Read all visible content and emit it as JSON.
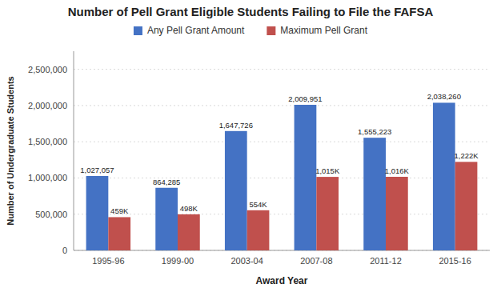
{
  "chart_data": {
    "type": "bar",
    "title": "Number of Pell Grant Eligible Students Failing to File the FAFSA",
    "xlabel": "Award Year",
    "ylabel": "Number of Undergraduate Students",
    "categories": [
      "1995-96",
      "1999-00",
      "2003-04",
      "2007-08",
      "2011-12",
      "2015-16"
    ],
    "series": [
      {
        "name": "Any Pell Grant Amount",
        "color": "#4472C4",
        "values": [
          1027057,
          864285,
          1647726,
          2009951,
          1555223,
          2038260
        ],
        "value_labels": [
          "1,027,057",
          "864,285",
          "1,647,726",
          "2,009,951",
          "1,555,223",
          "2,038,260"
        ]
      },
      {
        "name": "Maximum Pell Grant",
        "color": "#C0504D",
        "values": [
          459000,
          498000,
          554000,
          1015000,
          1016000,
          1222000
        ],
        "value_labels": [
          "459K",
          "498K",
          "554K",
          "1,015K",
          "1,016K",
          "1,222K"
        ]
      }
    ],
    "ylim": [
      0,
      2750000
    ],
    "yticks": [
      0,
      {
        "value": 500000,
        "label": "500,000"
      },
      {
        "value": 1000000,
        "label": "1,000,000"
      },
      {
        "value": 1500000,
        "label": "1,500,000"
      },
      {
        "value": 2000000,
        "label": "2,000,000"
      },
      {
        "value": 2500000,
        "label": "2,500,000"
      }
    ],
    "grid": true,
    "legend": "top",
    "data_labels": true
  }
}
